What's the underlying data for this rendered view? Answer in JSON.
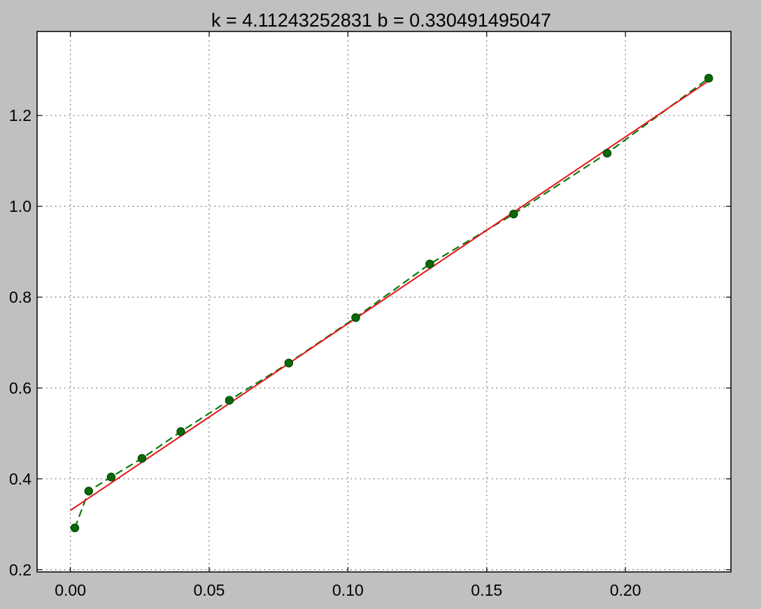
{
  "chart_data": {
    "type": "line",
    "title": "k = 4.11243252831 b = 0.330491495047",
    "xlabel": "",
    "ylabel": "",
    "xlim": [
      -0.012,
      0.238
    ],
    "ylim": [
      0.195,
      1.385
    ],
    "grid": true,
    "x_ticks": [
      "0.00",
      "0.05",
      "0.10",
      "0.15",
      "0.20"
    ],
    "y_ticks": [
      "0.2",
      "0.4",
      "0.6",
      "0.8",
      "1.0",
      "1.2"
    ],
    "series": [
      {
        "style": "dashed-with-markers",
        "color": "#0a7a0a",
        "marker_color": "#0a6a0a",
        "x": [
          0.0016,
          0.0066,
          0.0147,
          0.0258,
          0.0398,
          0.0573,
          0.0787,
          0.1028,
          0.1295,
          0.1597,
          0.1934,
          0.23
        ],
        "y": [
          0.292,
          0.373,
          0.404,
          0.445,
          0.504,
          0.573,
          0.655,
          0.755,
          0.873,
          0.983,
          1.117,
          1.282
        ]
      },
      {
        "style": "solid",
        "color": "#e8131b",
        "fit": {
          "k": 4.11243252831,
          "b": 0.330491495047
        },
        "x": [
          0.0,
          0.23
        ],
        "y": [
          0.3305,
          1.2763
        ]
      }
    ]
  }
}
